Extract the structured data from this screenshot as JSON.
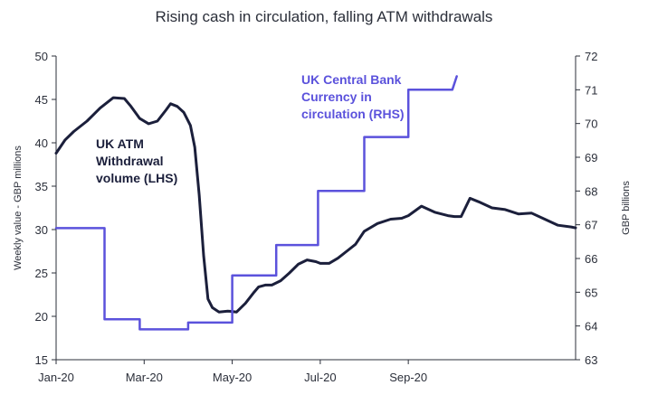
{
  "chart_data": {
    "type": "line",
    "title": "Rising cash in circulation, falling ATM withdrawals",
    "x_ticks": [
      "Jan-20",
      "Mar-20",
      "May-20",
      "Jul-20",
      "Sep-20"
    ],
    "xlim": [
      0,
      11.8
    ],
    "y_left": {
      "label": "Weekly value - GBP millions",
      "lim": [
        15,
        50
      ],
      "ticks": [
        15,
        20,
        25,
        30,
        35,
        40,
        45,
        50
      ]
    },
    "y_right": {
      "label": "GBP billions",
      "lim": [
        63,
        72
      ],
      "ticks": [
        63,
        64,
        65,
        66,
        67,
        68,
        69,
        70,
        71,
        72
      ]
    },
    "series": [
      {
        "name": "UK ATM Withdrawal volume (LHS)",
        "axis": "left",
        "color": "#1b1f3b",
        "x": [
          0,
          0.2,
          0.4,
          0.7,
          1.0,
          1.3,
          1.55,
          1.7,
          1.9,
          2.1,
          2.3,
          2.5,
          2.6,
          2.75,
          2.9,
          3.05,
          3.15,
          3.25,
          3.35,
          3.45,
          3.55,
          3.7,
          3.9,
          4.1,
          4.3,
          4.5,
          4.6,
          4.75,
          4.9,
          5.1,
          5.3,
          5.5,
          5.7,
          5.9,
          6.0,
          6.2,
          6.4,
          6.6,
          6.8,
          7.0,
          7.3,
          7.6,
          7.85,
          8.0,
          8.3,
          8.6,
          8.9,
          9.05,
          9.2,
          9.4,
          9.6,
          9.9,
          10.2,
          10.5,
          10.8,
          11.1,
          11.4,
          11.7,
          11.8
        ],
        "y": [
          38.8,
          40.3,
          41.3,
          42.5,
          44.0,
          45.2,
          45.1,
          44.2,
          42.8,
          42.2,
          42.5,
          43.8,
          44.5,
          44.2,
          43.5,
          42.0,
          39.5,
          34.0,
          27.0,
          22.0,
          21.0,
          20.5,
          20.6,
          20.5,
          21.5,
          22.8,
          23.4,
          23.6,
          23.6,
          24.1,
          25.0,
          26.0,
          26.5,
          26.3,
          26.1,
          26.1,
          26.7,
          27.5,
          28.3,
          29.8,
          30.7,
          31.2,
          31.3,
          31.6,
          32.7,
          32.0,
          31.6,
          31.5,
          31.5,
          33.6,
          33.2,
          32.5,
          32.3,
          31.8,
          31.9,
          31.2,
          30.5,
          30.3,
          30.2
        ]
      },
      {
        "name": "UK Central Bank Currency in circulation (RHS)",
        "axis": "right",
        "color": "#5b52dc",
        "x": [
          0,
          1.1,
          1.1,
          1.9,
          1.9,
          3.0,
          3.0,
          3.95,
          3.95,
          4.0,
          4.0,
          5.0,
          5.0,
          5.95,
          5.95,
          6.0,
          6.0,
          7.0,
          7.0,
          7.95,
          7.95,
          8.0,
          8.0,
          9.0,
          9.0,
          9.1
        ],
        "y": [
          66.9,
          66.9,
          64.2,
          64.2,
          63.9,
          63.9,
          64.1,
          64.1,
          64.1,
          64.1,
          65.5,
          65.5,
          66.4,
          66.4,
          68.0,
          68.0,
          68.0,
          68.0,
          69.6,
          69.6,
          69.6,
          69.6,
          71.0,
          71.0,
          71.0,
          71.4
        ]
      }
    ],
    "annotations": [
      {
        "lines": [
          "UK ATM",
          "Withdrawal",
          "volume (LHS)"
        ],
        "series": 0
      },
      {
        "lines": [
          "UK Central Bank",
          "Currency in",
          "circulation (RHS)"
        ],
        "series": 1
      }
    ]
  }
}
